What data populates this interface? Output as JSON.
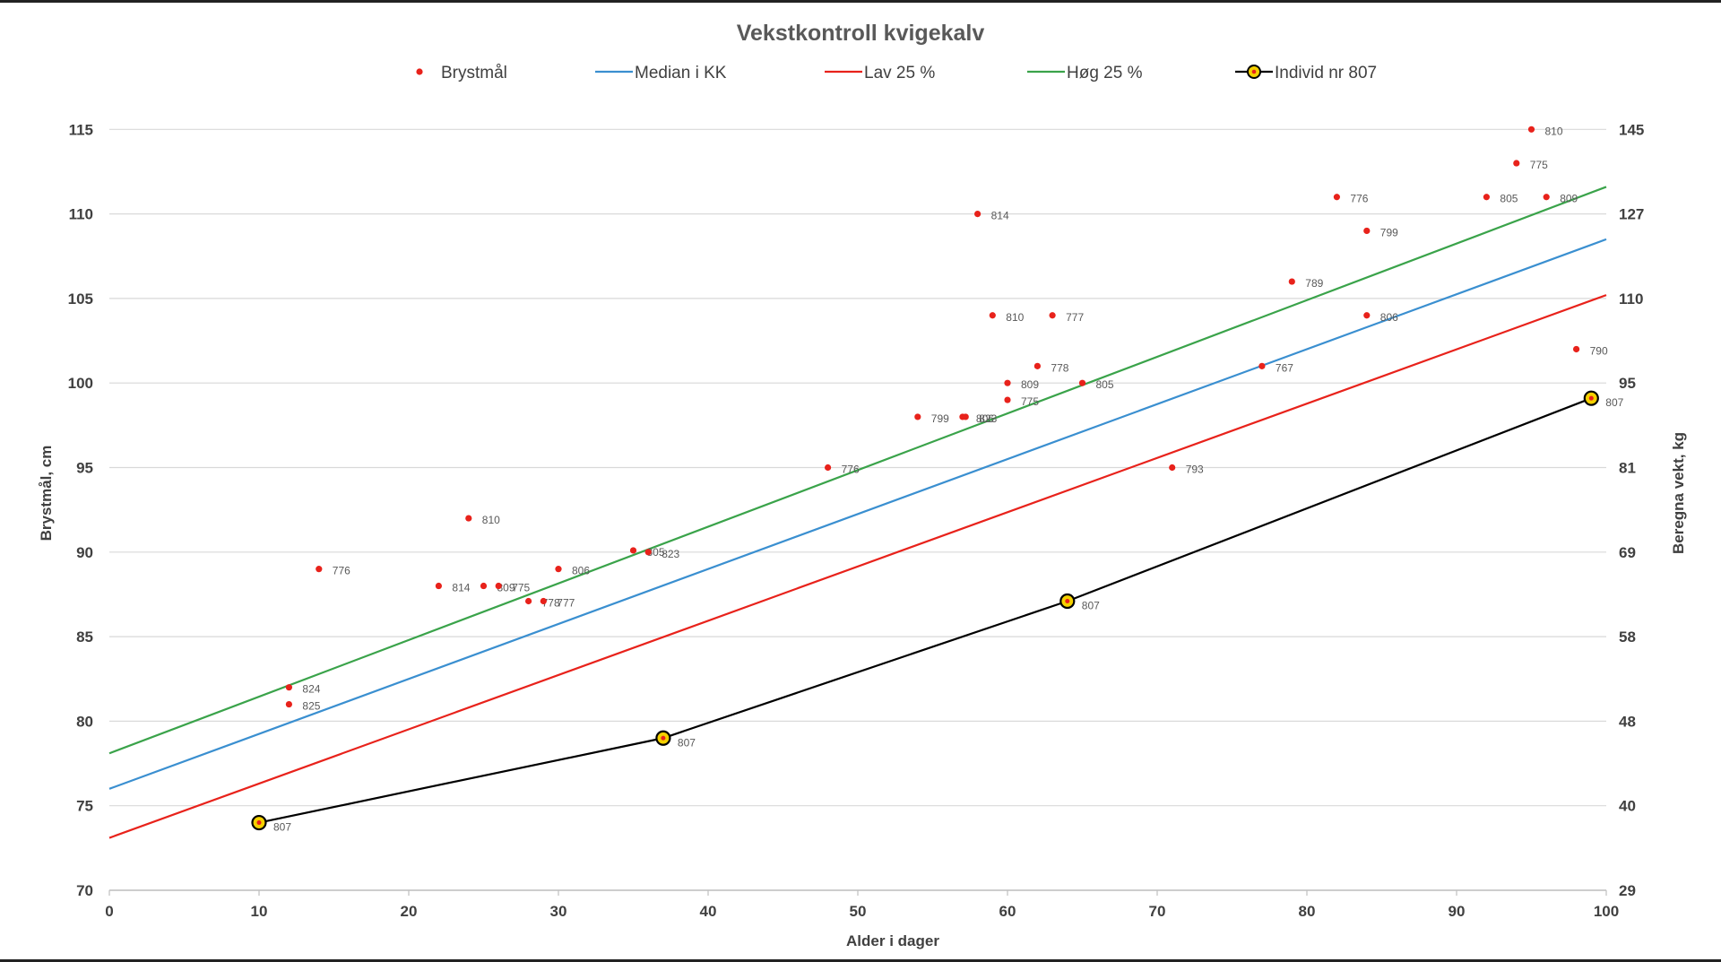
{
  "chart_data": {
    "type": "scatter",
    "title": "Vekstkontroll kvigekalv",
    "xlabel": "Alder i dager",
    "ylabel": "Brystmål, cm",
    "y2label": "Beregna vekt, kg",
    "xlim": [
      0,
      100
    ],
    "ylim": [
      70,
      117
    ],
    "x_ticks": [
      "0",
      "10",
      "20",
      "30",
      "40",
      "50",
      "60",
      "70",
      "80",
      "90",
      "100"
    ],
    "y_ticks": [
      "70",
      "75",
      "80",
      "85",
      "90",
      "95",
      "100",
      "105",
      "110",
      "115"
    ],
    "y2_ticks": [
      "29",
      "40",
      "48",
      "58",
      "69",
      "81",
      "95",
      "110",
      "127",
      "145"
    ],
    "grid": "horizontal",
    "legend_position": "top",
    "legend": [
      {
        "name": "Brystmål",
        "kind": "marker",
        "color": "#e8221b"
      },
      {
        "name": "Median i KK",
        "kind": "line",
        "color": "#3a8fd0"
      },
      {
        "name": "Lav 25 %",
        "kind": "line",
        "color": "#e8221b"
      },
      {
        "name": "Høg 25 %",
        "kind": "line",
        "color": "#3aa34a"
      },
      {
        "name": "Individ nr 807",
        "kind": "line-marker",
        "color": "#000000"
      }
    ],
    "lines": [
      {
        "name": "Median i KK",
        "color": "#3a8fd0",
        "points": [
          [
            0,
            76
          ],
          [
            100,
            108.5
          ]
        ]
      },
      {
        "name": "Lav 25 %",
        "color": "#e8221b",
        "points": [
          [
            0,
            73.1
          ],
          [
            100,
            105.2
          ]
        ]
      },
      {
        "name": "Høg 25 %",
        "color": "#3aa34a",
        "points": [
          [
            0,
            78.1
          ],
          [
            100,
            111.6
          ]
        ]
      }
    ],
    "individ": {
      "name": "Individ nr 807",
      "color": "#000000",
      "marker_fill": "#f4d000",
      "points": [
        {
          "x": 10,
          "y": 74,
          "label": "807"
        },
        {
          "x": 37,
          "y": 79,
          "label": "807"
        },
        {
          "x": 64,
          "y": 87.1,
          "label": "807"
        },
        {
          "x": 99,
          "y": 99.1,
          "label": "807"
        }
      ]
    },
    "brystmal": {
      "name": "Brystmål",
      "color": "#e8221b",
      "points": [
        {
          "x": 12,
          "y": 82,
          "label": "824"
        },
        {
          "x": 12,
          "y": 81,
          "label": "825"
        },
        {
          "x": 14,
          "y": 89,
          "label": "776"
        },
        {
          "x": 22,
          "y": 88,
          "label": "814"
        },
        {
          "x": 24,
          "y": 92,
          "label": "810"
        },
        {
          "x": 25,
          "y": 88,
          "label": "809"
        },
        {
          "x": 26,
          "y": 88,
          "label": "775"
        },
        {
          "x": 28,
          "y": 87.1,
          "label": "778"
        },
        {
          "x": 29,
          "y": 87.1,
          "label": "777"
        },
        {
          "x": 30,
          "y": 89,
          "label": "806"
        },
        {
          "x": 35,
          "y": 90.1,
          "label": "805"
        },
        {
          "x": 36,
          "y": 90,
          "label": "823"
        },
        {
          "x": 48,
          "y": 95,
          "label": "776"
        },
        {
          "x": 54,
          "y": 98,
          "label": "799"
        },
        {
          "x": 57,
          "y": 98,
          "label": "806"
        },
        {
          "x": 57.2,
          "y": 98,
          "label": "823"
        },
        {
          "x": 58,
          "y": 110,
          "label": "814"
        },
        {
          "x": 59,
          "y": 104,
          "label": "810"
        },
        {
          "x": 60,
          "y": 100,
          "label": "809"
        },
        {
          "x": 60,
          "y": 99,
          "label": "775"
        },
        {
          "x": 62,
          "y": 101,
          "label": "778"
        },
        {
          "x": 63,
          "y": 104,
          "label": "777"
        },
        {
          "x": 65,
          "y": 100,
          "label": "805"
        },
        {
          "x": 71,
          "y": 95,
          "label": "793"
        },
        {
          "x": 77,
          "y": 101,
          "label": "767"
        },
        {
          "x": 79,
          "y": 106,
          "label": "789"
        },
        {
          "x": 82,
          "y": 111,
          "label": "776"
        },
        {
          "x": 84,
          "y": 109,
          "label": "799"
        },
        {
          "x": 84,
          "y": 104,
          "label": "806"
        },
        {
          "x": 92,
          "y": 111,
          "label": "805"
        },
        {
          "x": 94,
          "y": 113,
          "label": "775"
        },
        {
          "x": 95,
          "y": 115,
          "label": "810"
        },
        {
          "x": 96,
          "y": 111,
          "label": "809"
        },
        {
          "x": 98,
          "y": 102,
          "label": "790"
        }
      ]
    }
  }
}
